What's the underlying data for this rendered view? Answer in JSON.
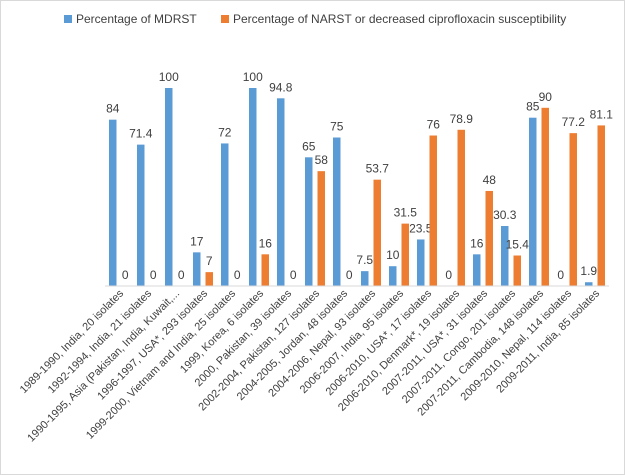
{
  "chart_data": {
    "type": "bar",
    "title": "",
    "xlabel": "",
    "ylabel": "",
    "ylim": [
      0,
      100
    ],
    "grid": false,
    "legend_position": "top",
    "categories": [
      "1989-1990, India, 20 isolates",
      "1992-1994, India, 21 isolates",
      "1990-1995, Asia (Pakistan, India, Kuwait,...",
      "1996-1997, USA*, 293 isolates",
      "1999-2000, Vietnam and India, 25 isolates",
      "1999, Korea, 6 isolates",
      "2000, Pakistan, 39 isolates",
      "2002-2004, Pakistan, 127 isolates",
      "2004-2005, Jordan, 48 isolates",
      "2004-2006, Nepal, 93 isolates",
      "2006-2007, India, 95 isolates",
      "2006-2010, USA*, 17 isolates",
      "2006-2010, Denmark*, 19 isolates",
      "2007-2011, USA*, 31 isolates",
      "2007-2011, Congo, 201 isolates",
      "2007-2011, Cambodia, 148 isolates",
      "2009-2010, Nepal, 114 isolates",
      "2009-2011, India, 85 isolates"
    ],
    "series": [
      {
        "name": "Percentage of MDRST",
        "color": "#5b9bd5",
        "values": [
          84,
          71.4,
          100,
          17,
          72,
          100,
          94.8,
          65,
          75,
          7.5,
          10,
          23.5,
          0,
          16,
          30.3,
          85,
          0,
          1.9
        ],
        "labels": [
          "84",
          "71.4",
          "100",
          "17",
          "72",
          "100",
          "94.8",
          "65",
          "75",
          "7.5",
          "10",
          "23.5",
          "0",
          "16",
          "30.3",
          "85",
          "0",
          "1.9"
        ]
      },
      {
        "name": "Percentage of NARST or decreased ciprofloxacin susceptibility",
        "color": "#ed7d31",
        "values": [
          0,
          0,
          0,
          7,
          0,
          16,
          0,
          58,
          0,
          53.7,
          31.5,
          76,
          78.9,
          48,
          15.4,
          90,
          77.2,
          81.1
        ],
        "labels": [
          "0",
          "0",
          "0",
          "7",
          "0",
          "16",
          "0",
          "58",
          "0",
          "53.7",
          "31.5",
          "76",
          "78.9",
          "48",
          "15.4",
          "90",
          "77.2",
          "81.1"
        ]
      }
    ]
  }
}
